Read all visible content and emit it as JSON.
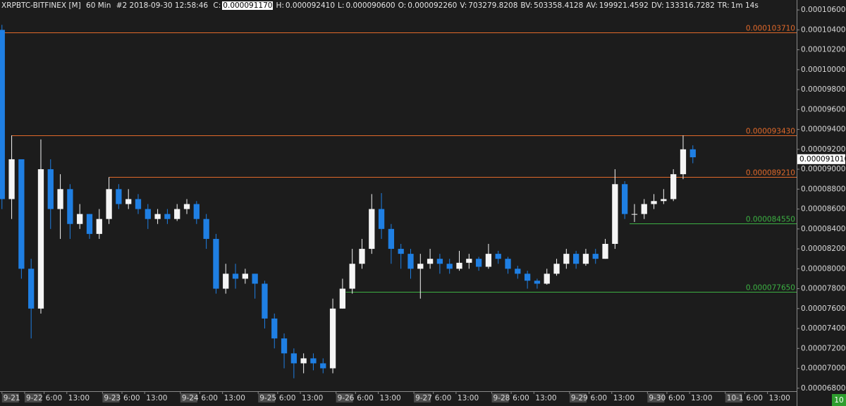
{
  "chart_data": {
    "type": "candlestick",
    "symbol": "XRPBTC-BITFINEX [M]",
    "interval": "60 Min",
    "bar_info": "#2 2018-09-30 12:58:46",
    "ohlc_fields": [
      {
        "label": "C:",
        "value": "0.000091170"
      },
      {
        "label": "H:",
        "value": "0.000092410"
      },
      {
        "label": "L:",
        "value": "0.000090600"
      },
      {
        "label": "O:",
        "value": "0.000092260"
      },
      {
        "label": "V:",
        "value": "703279.8208"
      },
      {
        "label": "BV:",
        "value": "503358.4128"
      },
      {
        "label": "AV:",
        "value": "199921.4592"
      },
      {
        "label": "DV:",
        "value": "133316.7282"
      },
      {
        "label": "TR:",
        "value": "1m 14s"
      }
    ],
    "up_color": "#f5f5f5",
    "down_color": "#1f7fe3",
    "xlim": [
      -7.6,
      238
    ],
    "ylim": [
      6.77e-05,
      0.000107
    ],
    "xticks": [
      {
        "value": -7,
        "label": "9-21"
      },
      {
        "value": 0,
        "label": "9-22"
      },
      {
        "value": 6,
        "label": "6:00"
      },
      {
        "value": 13,
        "label": "13:00"
      },
      {
        "value": 24,
        "label": "9-23"
      },
      {
        "value": 30,
        "label": "6:00"
      },
      {
        "value": 37,
        "label": "13:00"
      },
      {
        "value": 48,
        "label": "9-24"
      },
      {
        "value": 54,
        "label": "6:00"
      },
      {
        "value": 61,
        "label": "13:00"
      },
      {
        "value": 72,
        "label": "9-25"
      },
      {
        "value": 78,
        "label": "6:00"
      },
      {
        "value": 85,
        "label": "13:00"
      },
      {
        "value": 96,
        "label": "9-26"
      },
      {
        "value": 102,
        "label": "6:00"
      },
      {
        "value": 109,
        "label": "13:00"
      },
      {
        "value": 120,
        "label": "9-27"
      },
      {
        "value": 126,
        "label": "6:00"
      },
      {
        "value": 133,
        "label": "13:00"
      },
      {
        "value": 144,
        "label": "9-28"
      },
      {
        "value": 150,
        "label": "6:00"
      },
      {
        "value": 157,
        "label": "13:00"
      },
      {
        "value": 168,
        "label": "9-29"
      },
      {
        "value": 174,
        "label": "6:00"
      },
      {
        "value": 181,
        "label": "13:00"
      },
      {
        "value": 192,
        "label": "9-30"
      },
      {
        "value": 198,
        "label": "6:00"
      },
      {
        "value": 205,
        "label": "13:00"
      },
      {
        "value": 216,
        "label": "10-1"
      },
      {
        "value": 222,
        "label": "6:00"
      },
      {
        "value": 229,
        "label": "13:00"
      }
    ],
    "yticks": [
      {
        "value": 0.000106,
        "label": "0.0001060000"
      },
      {
        "value": 0.000104,
        "label": "0.0001040000"
      },
      {
        "value": 0.000102,
        "label": "0.0001020000"
      },
      {
        "value": 0.0001,
        "label": "0.0001000000"
      },
      {
        "value": 9.8e-05,
        "label": "0.0000980000"
      },
      {
        "value": 9.6e-05,
        "label": "0.0000960000"
      },
      {
        "value": 9.4e-05,
        "label": "0.0000940000"
      },
      {
        "value": 9.2e-05,
        "label": "0.0000920000"
      },
      {
        "value": 9e-05,
        "label": "0.0000900000"
      },
      {
        "value": 8.8e-05,
        "label": "0.0000880000"
      },
      {
        "value": 8.6e-05,
        "label": "0.0000860000"
      },
      {
        "value": 8.4e-05,
        "label": "0.0000840000"
      },
      {
        "value": 8.2e-05,
        "label": "0.0000820000"
      },
      {
        "value": 8e-05,
        "label": "0.0000800000"
      },
      {
        "value": 7.8e-05,
        "label": "0.0000780000"
      },
      {
        "value": 7.6e-05,
        "label": "0.0000760000"
      },
      {
        "value": 7.4e-05,
        "label": "0.0000740000"
      },
      {
        "value": 7.2e-05,
        "label": "0.0000720000"
      },
      {
        "value": 7e-05,
        "label": "0.0000700000"
      },
      {
        "value": 6.8e-05,
        "label": "0.0000680000"
      }
    ],
    "levels": [
      {
        "value": 0.00010371,
        "label": "0.000103710",
        "color": "#e0692a"
      },
      {
        "value": 9.343e-05,
        "label": "0.000093430",
        "color": "#e0692a",
        "start": -4
      },
      {
        "value": 8.921e-05,
        "label": "0.000089210",
        "color": "#e0692a",
        "start": 26
      },
      {
        "value": 8.455e-05,
        "label": "0.000084550",
        "color": "#3cb043",
        "start": 186.5
      },
      {
        "value": 7.765e-05,
        "label": "0.000077650",
        "color": "#3cb043",
        "start": 99
      }
    ],
    "last_price": {
      "value": 9.101e-05,
      "label": "0.000091010"
    },
    "badge": "10",
    "candles": {
      "x": [
        -7,
        -4,
        -1,
        2,
        5,
        8,
        11,
        14,
        17,
        20,
        23,
        26,
        29,
        32,
        35,
        38,
        41,
        44,
        47,
        50,
        53,
        56,
        59,
        62,
        65,
        68,
        71,
        74,
        77,
        80,
        83,
        86,
        89,
        92,
        95,
        98,
        101,
        104,
        107,
        110,
        113,
        116,
        119,
        122,
        125,
        128,
        131,
        134,
        137,
        140,
        143,
        146,
        149,
        152,
        155,
        158,
        161,
        164,
        167,
        170,
        173,
        176,
        179,
        182,
        185,
        188,
        191,
        194,
        197,
        200,
        203,
        206
      ],
      "open": [
        0.000104,
        8.7e-05,
        9.1e-05,
        8e-05,
        7.6e-05,
        9e-05,
        8.6e-05,
        8.8e-05,
        8.45e-05,
        8.55e-05,
        8.35e-05,
        8.5e-05,
        8.8e-05,
        8.65e-05,
        8.7e-05,
        8.6e-05,
        8.5e-05,
        8.55e-05,
        8.5e-05,
        8.6e-05,
        8.65e-05,
        8.5e-05,
        8.3e-05,
        7.8e-05,
        7.95e-05,
        7.9e-05,
        7.95e-05,
        7.85e-05,
        7.5e-05,
        7.3e-05,
        7.15e-05,
        7.05e-05,
        7.1e-05,
        7.05e-05,
        7e-05,
        7.6e-05,
        7.8e-05,
        8.05e-05,
        8.2e-05,
        8.6e-05,
        8.4e-05,
        8.2e-05,
        8.15e-05,
        8e-05,
        8.05e-05,
        8.1e-05,
        8.05e-05,
        8e-05,
        8.06e-05,
        8.1e-05,
        8.02e-05,
        8.15e-05,
        8.1e-05,
        8e-05,
        7.95e-05,
        7.88e-05,
        7.85e-05,
        7.95e-05,
        8.05e-05,
        8.15e-05,
        8.05e-05,
        8.15e-05,
        8.1e-05,
        8.25e-05,
        8.85e-05,
        8.55e-05,
        8.55e-05,
        8.65e-05,
        8.68e-05,
        8.7e-05,
        8.95e-05,
        9.2e-05
      ],
      "high": [
        0.0001045,
        9.34e-05,
        9.1e-05,
        8.1e-05,
        9.3e-05,
        9.1e-05,
        8.95e-05,
        8.85e-05,
        8.65e-05,
        8.55e-05,
        8.6e-05,
        8.92e-05,
        8.85e-05,
        8.8e-05,
        8.75e-05,
        8.65e-05,
        8.6e-05,
        8.6e-05,
        8.65e-05,
        8.7e-05,
        8.68e-05,
        8.55e-05,
        8.35e-05,
        8.05e-05,
        8.05e-05,
        8e-05,
        7.95e-05,
        7.88e-05,
        7.55e-05,
        7.35e-05,
        7.2e-05,
        7.15e-05,
        7.15e-05,
        7.1e-05,
        7.7e-05,
        7.9e-05,
        8.2e-05,
        8.3e-05,
        8.75e-05,
        8.76e-05,
        8.45e-05,
        8.25e-05,
        8.2e-05,
        8.15e-05,
        8.2e-05,
        8.15e-05,
        8.1e-05,
        8.18e-05,
        8.15e-05,
        8.12e-05,
        8.25e-05,
        8.18e-05,
        8.12e-05,
        8.03e-05,
        7.98e-05,
        7.9e-05,
        8e-05,
        8.1e-05,
        8.2e-05,
        8.18e-05,
        8.2e-05,
        8.2e-05,
        8.3e-05,
        9e-05,
        8.88e-05,
        8.65e-05,
        8.7e-05,
        8.75e-05,
        8.8e-05,
        9e-05,
        9.34e-05,
        9.24e-05
      ],
      "low": [
        8.6e-05,
        8.5e-05,
        7.9e-05,
        7.3e-05,
        7.55e-05,
        8.4e-05,
        8.3e-05,
        8.3e-05,
        8.4e-05,
        8.3e-05,
        8.3e-05,
        8.45e-05,
        8.6e-05,
        8.6e-05,
        8.55e-05,
        8.4e-05,
        8.45e-05,
        8.45e-05,
        8.48e-05,
        8.55e-05,
        8.45e-05,
        8.2e-05,
        7.75e-05,
        7.75e-05,
        7.8e-05,
        7.85e-05,
        7.7e-05,
        7.4e-05,
        7.2e-05,
        7e-05,
        6.9e-05,
        6.95e-05,
        6.98e-05,
        6.95e-05,
        6.95e-05,
        7.6e-05,
        7.75e-05,
        8e-05,
        8.15e-05,
        8.3e-05,
        8.05e-05,
        8e-05,
        7.9e-05,
        7.7e-05,
        8e-05,
        7.95e-05,
        7.95e-05,
        7.98e-05,
        8e-05,
        7.98e-05,
        8e-05,
        8.05e-05,
        7.95e-05,
        7.9e-05,
        7.8e-05,
        7.8e-05,
        7.84e-05,
        7.93e-05,
        8e-05,
        8e-05,
        8.03e-05,
        8.05e-05,
        8.1e-05,
        8.2e-05,
        8.5e-05,
        8.47e-05,
        8.5e-05,
        8.6e-05,
        8.65e-05,
        8.68e-05,
        8.9e-05,
        9.06e-05
      ],
      "close": [
        8.7e-05,
        9.1e-05,
        8e-05,
        7.6e-05,
        9e-05,
        8.6e-05,
        8.8e-05,
        8.45e-05,
        8.55e-05,
        8.35e-05,
        8.5e-05,
        8.8e-05,
        8.65e-05,
        8.7e-05,
        8.6e-05,
        8.5e-05,
        8.55e-05,
        8.5e-05,
        8.6e-05,
        8.65e-05,
        8.5e-05,
        8.3e-05,
        7.8e-05,
        7.95e-05,
        7.9e-05,
        7.95e-05,
        7.85e-05,
        7.5e-05,
        7.3e-05,
        7.15e-05,
        7.05e-05,
        7.1e-05,
        7.05e-05,
        7e-05,
        7.6e-05,
        7.8e-05,
        8.05e-05,
        8.2e-05,
        8.6e-05,
        8.4e-05,
        8.2e-05,
        8.15e-05,
        8e-05,
        8.05e-05,
        8.1e-05,
        8.05e-05,
        8e-05,
        8.06e-05,
        8.1e-05,
        8.02e-05,
        8.15e-05,
        8.1e-05,
        8e-05,
        7.95e-05,
        7.88e-05,
        7.85e-05,
        7.95e-05,
        8.05e-05,
        8.15e-05,
        8.05e-05,
        8.15e-05,
        8.1e-05,
        8.25e-05,
        8.85e-05,
        8.55e-05,
        8.55e-05,
        8.65e-05,
        8.68e-05,
        8.7e-05,
        8.95e-05,
        9.2e-05,
        9.12e-05
      ]
    }
  }
}
